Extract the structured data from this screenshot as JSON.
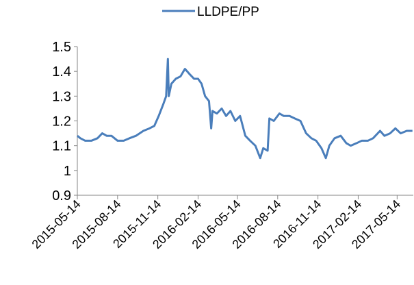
{
  "chart_data": {
    "type": "line",
    "x": [
      "2015-05-14",
      "2015-05-21",
      "2015-06-01",
      "2015-06-15",
      "2015-06-29",
      "2015-07-10",
      "2015-07-20",
      "2015-07-31",
      "2015-08-14",
      "2015-08-28",
      "2015-09-10",
      "2015-09-25",
      "2015-10-12",
      "2015-10-26",
      "2015-11-06",
      "2015-11-16",
      "2015-11-27",
      "2015-12-03",
      "2015-12-07",
      "2015-12-09",
      "2015-12-15",
      "2015-12-25",
      "2016-01-05",
      "2016-01-15",
      "2016-01-25",
      "2016-02-05",
      "2016-02-14",
      "2016-02-22",
      "2016-03-01",
      "2016-03-10",
      "2016-03-15",
      "2016-03-18",
      "2016-03-28",
      "2016-04-08",
      "2016-04-18",
      "2016-04-28",
      "2016-05-09",
      "2016-05-20",
      "2016-06-01",
      "2016-06-12",
      "2016-06-24",
      "2016-07-05",
      "2016-07-12",
      "2016-07-22",
      "2016-07-26",
      "2016-08-05",
      "2016-08-18",
      "2016-08-28",
      "2016-09-10",
      "2016-09-22",
      "2016-10-05",
      "2016-10-18",
      "2016-10-30",
      "2016-11-10",
      "2016-11-22",
      "2016-12-02",
      "2016-12-10",
      "2016-12-22",
      "2017-01-05",
      "2017-01-18",
      "2017-01-28",
      "2017-02-10",
      "2017-02-22",
      "2017-03-08",
      "2017-03-20",
      "2017-04-05",
      "2017-04-15",
      "2017-04-28",
      "2017-05-10",
      "2017-05-22",
      "2017-06-05",
      "2017-06-18"
    ],
    "series": [
      {
        "name": "LLDPE/PP",
        "color": "#4a7ebb",
        "values": [
          1.14,
          1.13,
          1.12,
          1.12,
          1.13,
          1.15,
          1.14,
          1.14,
          1.12,
          1.12,
          1.13,
          1.14,
          1.16,
          1.17,
          1.18,
          1.22,
          1.27,
          1.3,
          1.45,
          1.3,
          1.35,
          1.37,
          1.38,
          1.41,
          1.39,
          1.37,
          1.37,
          1.35,
          1.3,
          1.28,
          1.17,
          1.24,
          1.23,
          1.25,
          1.22,
          1.24,
          1.2,
          1.22,
          1.14,
          1.12,
          1.1,
          1.05,
          1.09,
          1.08,
          1.21,
          1.2,
          1.23,
          1.22,
          1.22,
          1.21,
          1.2,
          1.15,
          1.13,
          1.12,
          1.09,
          1.05,
          1.1,
          1.13,
          1.14,
          1.11,
          1.1,
          1.11,
          1.12,
          1.12,
          1.13,
          1.16,
          1.14,
          1.15,
          1.17,
          1.15,
          1.16,
          1.16
        ]
      }
    ],
    "xlim": [
      "2015-05-14",
      "2017-06-20"
    ],
    "xticks": [
      "2015-05-14",
      "2015-08-14",
      "2015-11-14",
      "2016-02-14",
      "2016-05-14",
      "2016-08-14",
      "2016-11-14",
      "2017-02-14",
      "2017-05-14"
    ],
    "ylim": [
      0.9,
      1.5
    ],
    "yticks": [
      0.9,
      1,
      1.1,
      1.2,
      1.3,
      1.4,
      1.5
    ],
    "legend": "top"
  }
}
